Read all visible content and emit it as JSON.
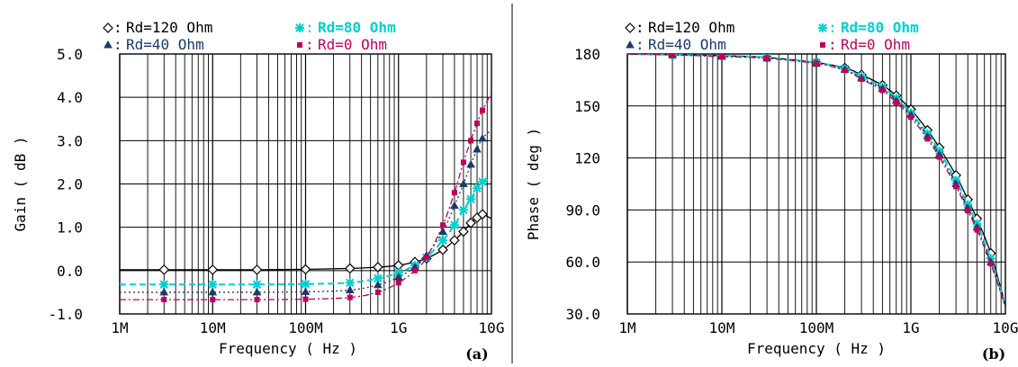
{
  "chart_data": [
    {
      "type": "line",
      "panel_label": "(a)",
      "xlabel": "Frequency ( Hz )",
      "ylabel": "Gain ( dB )",
      "xscale": "log",
      "xlim": [
        1000000,
        10000000000
      ],
      "ylim": [
        -1.0,
        5.0
      ],
      "x_ticks": [
        "1M",
        "10M",
        "100M",
        "1G",
        "10G"
      ],
      "y_ticks": [
        "-1.0",
        "0.0",
        "1.0",
        "2.0",
        "3.0",
        "4.0",
        "5.0"
      ],
      "grid": true,
      "legend_position": "top",
      "x": [
        1000000,
        3000000,
        10000000,
        30000000,
        100000000,
        300000000,
        600000000,
        1000000000,
        1500000000,
        2000000000,
        3000000000,
        4000000000,
        5000000000,
        6000000000,
        7000000000,
        8000000000,
        10000000000
      ],
      "series": [
        {
          "name": "Rd=120 Ohm",
          "color": "#000000",
          "dash": "solid",
          "marker": "diamond",
          "values": [
            0.02,
            0.02,
            0.02,
            0.02,
            0.03,
            0.05,
            0.08,
            0.12,
            0.2,
            0.28,
            0.48,
            0.7,
            0.9,
            1.1,
            1.22,
            1.3,
            1.2
          ]
        },
        {
          "name": "Rd=80 Ohm",
          "color": "#00d0d0",
          "dash": "dashed",
          "marker": "star",
          "values": [
            -0.32,
            -0.32,
            -0.32,
            -0.32,
            -0.31,
            -0.28,
            -0.18,
            -0.05,
            0.12,
            0.3,
            0.7,
            1.05,
            1.4,
            1.65,
            1.9,
            2.05,
            2.1
          ]
        },
        {
          "name": "Rd=40 Ohm",
          "color": "#1a3a6e",
          "dash": "dotted",
          "marker": "triangle",
          "values": [
            -0.5,
            -0.5,
            -0.5,
            -0.5,
            -0.49,
            -0.45,
            -0.33,
            -0.15,
            0.08,
            0.35,
            0.9,
            1.5,
            2.0,
            2.45,
            2.8,
            3.05,
            3.25
          ]
        },
        {
          "name": "Rd=0 Ohm",
          "color": "#c0005a",
          "dash": "dashdot",
          "marker": "square",
          "values": [
            -0.67,
            -0.67,
            -0.67,
            -0.67,
            -0.66,
            -0.62,
            -0.5,
            -0.28,
            0.0,
            0.3,
            1.05,
            1.8,
            2.5,
            3.0,
            3.4,
            3.7,
            4.1
          ]
        }
      ]
    },
    {
      "type": "line",
      "panel_label": "(b)",
      "xlabel": "Frequency ( Hz )",
      "ylabel": "Phase ( deg )",
      "xscale": "log",
      "xlim": [
        1000000,
        10000000000
      ],
      "ylim": [
        30.0,
        180.0
      ],
      "x_ticks": [
        "1M",
        "10M",
        "100M",
        "1G",
        "10G"
      ],
      "y_ticks": [
        "30.0",
        "60.0",
        "90.0",
        "120",
        "150",
        "180"
      ],
      "grid": true,
      "legend_position": "top",
      "x": [
        1000000,
        3000000,
        10000000,
        30000000,
        100000000,
        200000000,
        300000000,
        500000000,
        700000000,
        1000000000,
        1500000000,
        2000000000,
        3000000000,
        4000000000,
        5000000000,
        7000000000,
        10000000000
      ],
      "series": [
        {
          "name": "Rd=120 Ohm",
          "color": "#000000",
          "dash": "solid",
          "marker": "diamond",
          "values": [
            180,
            179.5,
            179,
            178,
            175,
            172,
            168,
            162,
            156,
            148,
            136,
            126,
            110,
            96,
            85,
            65,
            35
          ]
        },
        {
          "name": "Rd=80 Ohm",
          "color": "#00d0d0",
          "dash": "dashed",
          "marker": "star",
          "values": [
            180,
            179.5,
            179,
            178,
            175,
            171.5,
            167,
            161,
            154.5,
            146,
            134,
            124,
            107,
            93,
            82,
            62,
            35
          ]
        },
        {
          "name": "Rd=40 Ohm",
          "color": "#1a3a6e",
          "dash": "dotted",
          "marker": "triangle",
          "values": [
            180,
            179.5,
            178.5,
            177.5,
            174.5,
            171,
            166,
            160,
            153,
            145,
            132.5,
            122,
            105,
            91,
            80,
            60,
            34
          ]
        },
        {
          "name": "Rd=0 Ohm",
          "color": "#c0005a",
          "dash": "dashdot",
          "marker": "square",
          "values": [
            180,
            179.5,
            178.5,
            177.5,
            174.5,
            170.5,
            165.5,
            159,
            152,
            143.5,
            131,
            120.5,
            103.5,
            89.5,
            78.5,
            59,
            34
          ]
        }
      ]
    }
  ]
}
